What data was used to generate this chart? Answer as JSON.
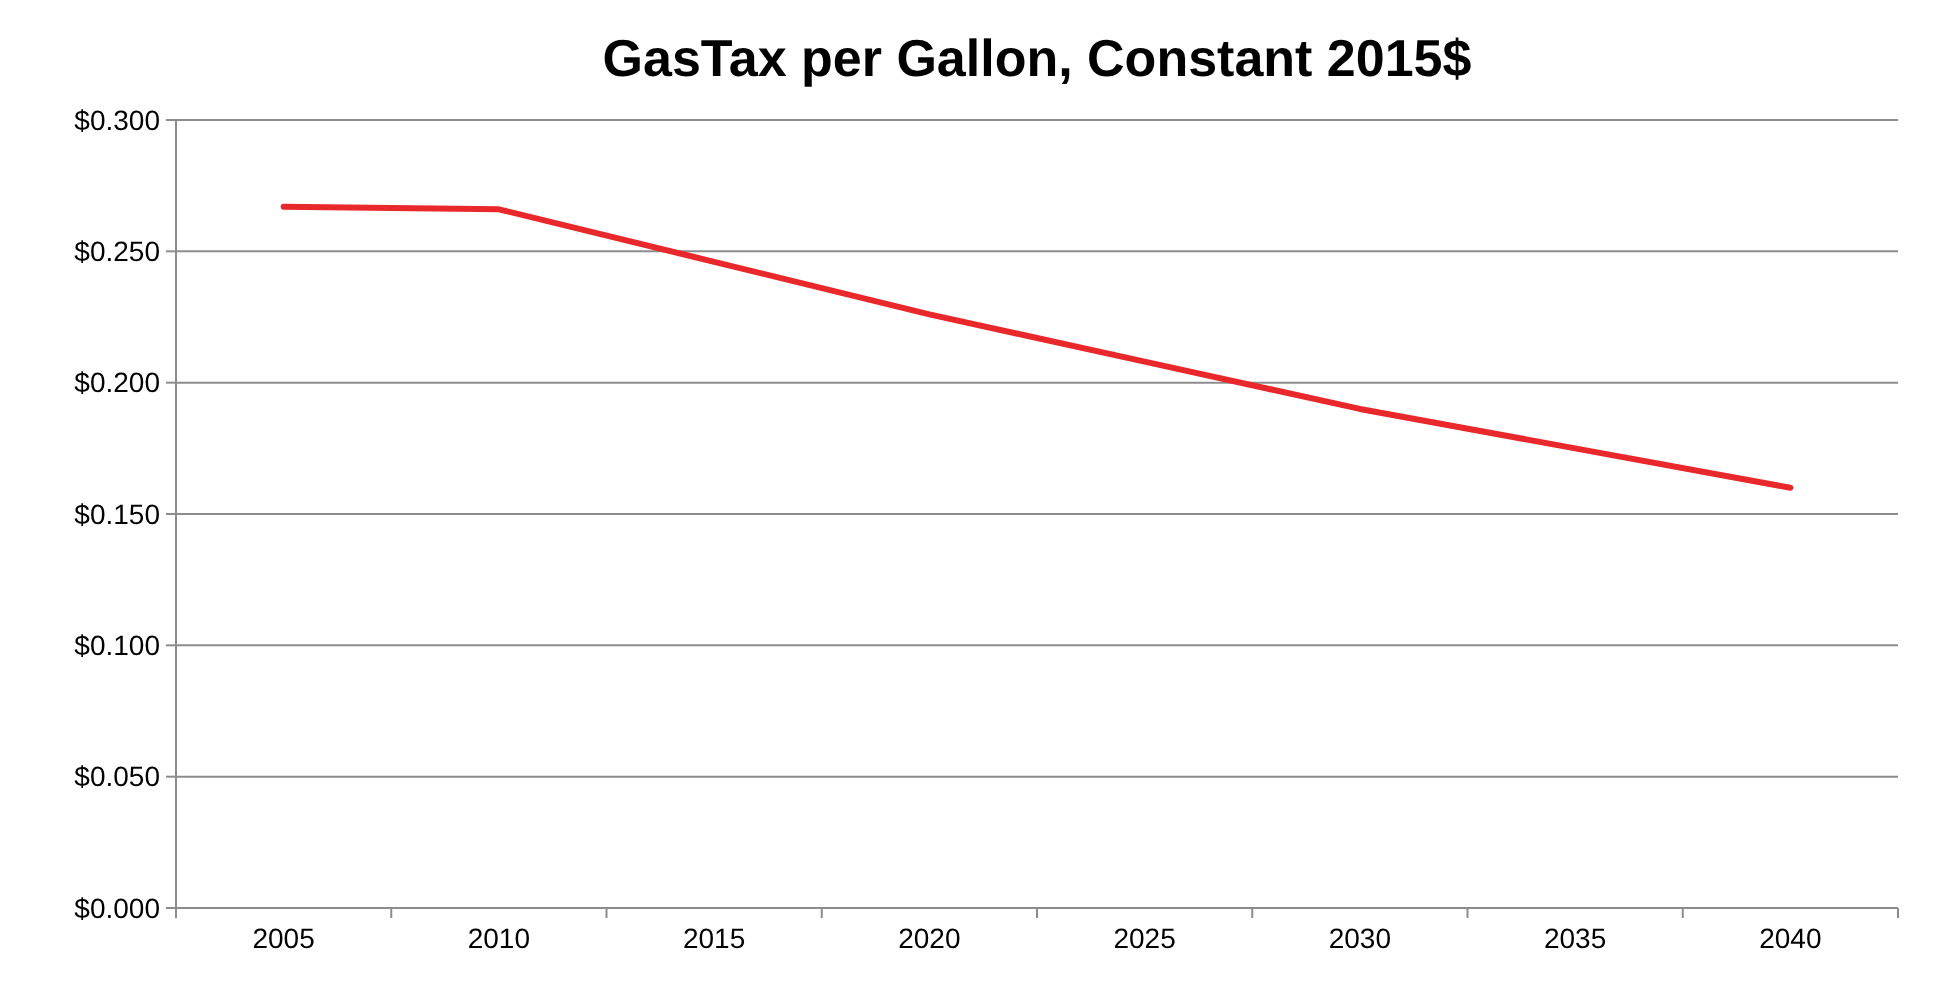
{
  "chart_data": {
    "type": "line",
    "title": "GasTax per Gallon, Constant 2015$",
    "categories": [
      "2005",
      "2010",
      "2015",
      "2020",
      "2025",
      "2030",
      "2035",
      "2040"
    ],
    "series": [
      {
        "color": "#e8282b",
        "values": [
          0.267,
          0.266,
          0.246,
          0.226,
          0.208,
          0.19,
          0.175,
          0.16
        ]
      }
    ],
    "ylim": [
      0,
      0.3
    ],
    "yticks": [
      {
        "value": 0,
        "label": "$0.000"
      },
      {
        "value": 0.05,
        "label": "$0.050"
      },
      {
        "value": 0.1,
        "label": "$0.100"
      },
      {
        "value": 0.15,
        "label": "$0.150"
      },
      {
        "value": 0.2,
        "label": "$0.200"
      },
      {
        "value": 0.25,
        "label": "$0.250"
      },
      {
        "value": 0.3,
        "label": "$0.300"
      }
    ],
    "grid": "y",
    "marker": "none",
    "line_style": "solid"
  }
}
